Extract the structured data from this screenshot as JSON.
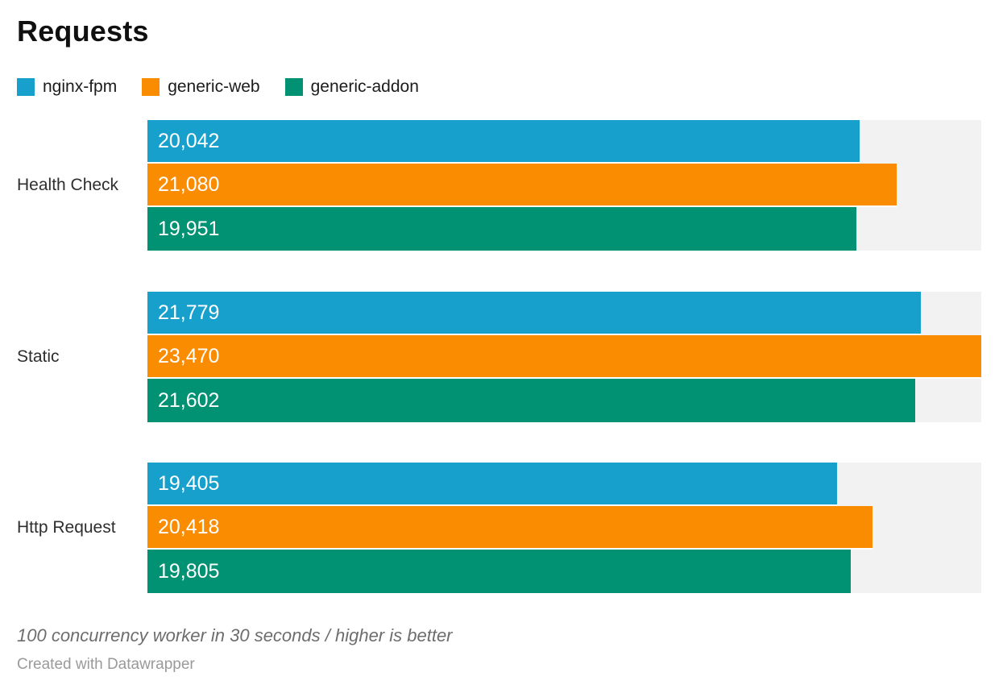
{
  "title": "Requests",
  "legend": [
    {
      "label": "nginx-fpm",
      "color": "#18a0cd",
      "swatch_icon": "color-swatch-icon"
    },
    {
      "label": "generic-web",
      "color": "#f98c00",
      "swatch_icon": "color-swatch-icon"
    },
    {
      "label": "generic-addon",
      "color": "#009273",
      "swatch_icon": "color-swatch-icon"
    }
  ],
  "footer": {
    "note": "100 concurrency worker in 30 seconds / higher is better",
    "credit": "Created with Datawrapper"
  },
  "colors": {
    "track": "#f2f2f2",
    "value_label": "#ffffff",
    "category_label": "#2e2e2e",
    "title": "#101010",
    "note": "#6d6d6d",
    "credit": "#9a9a9a"
  },
  "chart_data": {
    "type": "bar",
    "orientation": "horizontal",
    "title": "Requests",
    "categories": [
      "Health Check",
      "Static",
      "Http Request"
    ],
    "series": [
      {
        "name": "nginx-fpm",
        "color": "#18a0cd",
        "values": [
          20042,
          21779,
          19405
        ],
        "labels": [
          "20,042",
          "21,779",
          "19,405"
        ]
      },
      {
        "name": "generic-web",
        "color": "#f98c00",
        "values": [
          21080,
          23470,
          20418
        ],
        "labels": [
          "21,080",
          "23,470",
          "20,418"
        ]
      },
      {
        "name": "generic-addon",
        "color": "#009273",
        "values": [
          19951,
          21602,
          19805
        ],
        "labels": [
          "19,951",
          "21,602",
          "19,805"
        ]
      }
    ],
    "xlim": [
      0,
      23470
    ],
    "xlabel": "",
    "ylabel": "",
    "grid": false,
    "legend_position": "top",
    "value_labels_inside_bars": true,
    "background_track": true,
    "note": "100 concurrency worker in 30 seconds / higher is better"
  }
}
